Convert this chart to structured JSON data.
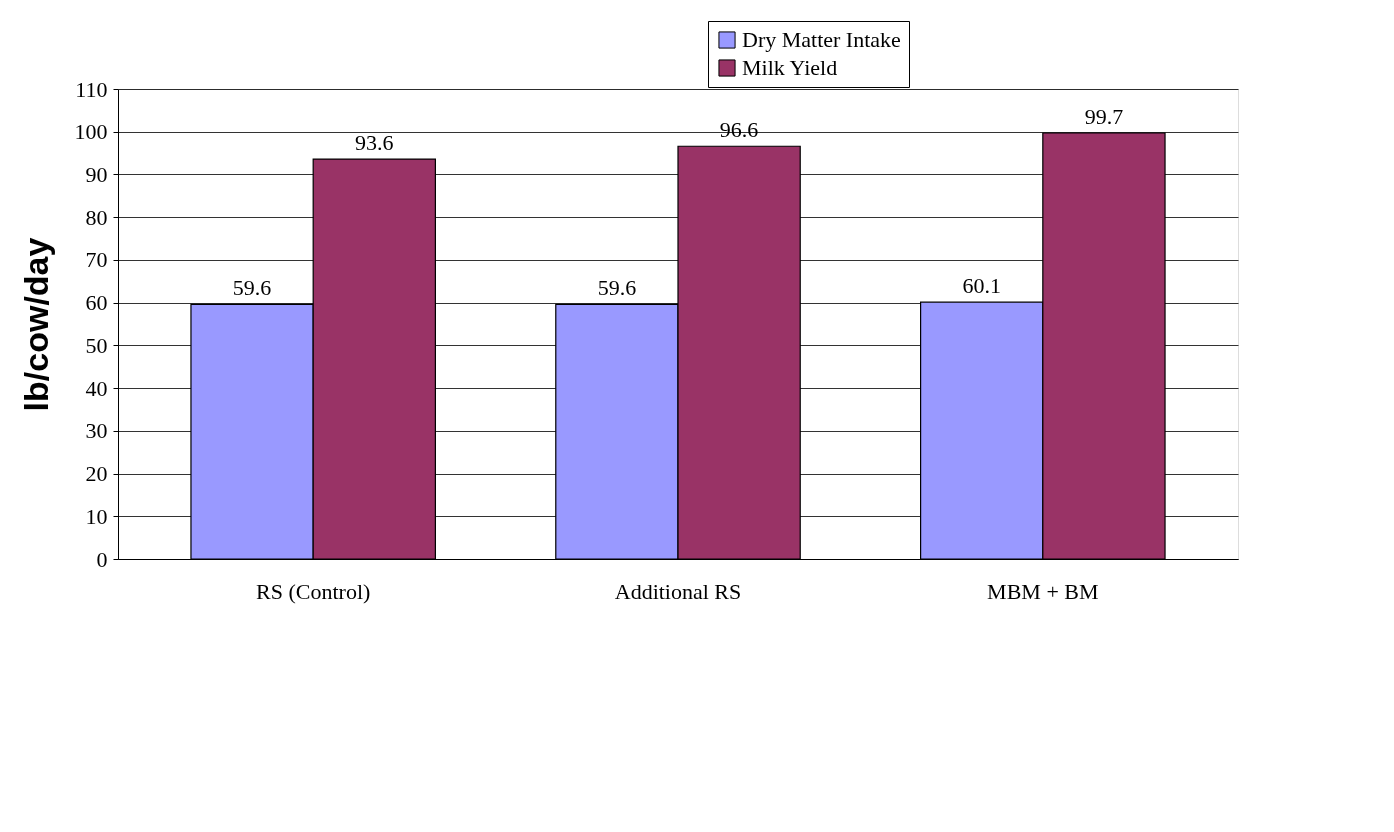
{
  "chart_data": {
    "type": "bar",
    "ylabel": "lb/cow/day",
    "categories": [
      "RS (Control)",
      "Additional RS",
      "MBM + BM"
    ],
    "series": [
      {
        "name": "Dry Matter Intake",
        "color": "#9999ff",
        "values": [
          59.6,
          59.6,
          60.1
        ]
      },
      {
        "name": "Milk Yield",
        "color": "#993366",
        "values": [
          93.6,
          96.6,
          99.7
        ]
      }
    ],
    "ylim": [
      0,
      110
    ],
    "yticks": [
      0,
      10,
      20,
      30,
      40,
      50,
      60,
      70,
      80,
      90,
      100,
      110
    ],
    "grid": "y",
    "legend": "top right",
    "data_labels": true
  }
}
